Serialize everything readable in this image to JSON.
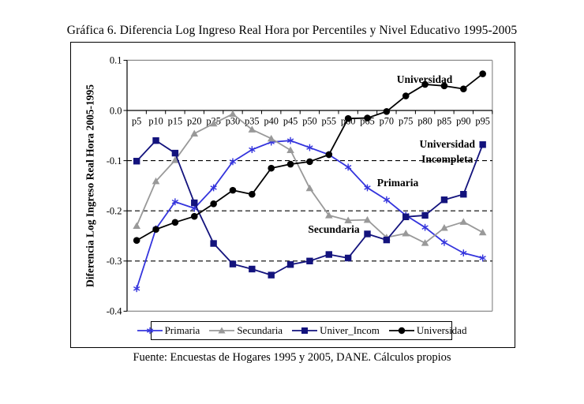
{
  "title": "Gráfica 6. Diferencia Log Ingreso Real Hora por Percentiles y Nivel Educativo 1995-2005",
  "footer": "Fuente: Encuestas de Hogares 1995 y 2005, DANE. Cálculos propios",
  "colors": {
    "primaria_blue": "#3434dd",
    "secundaria_gray": "#999999",
    "univer_incom_navy": "#13137d",
    "universidad_black": "#000000",
    "frame_gray": "#8c8c8c"
  },
  "chart_data": {
    "type": "line",
    "title": "Gráfica 6. Diferencia Log Ingreso Real Hora por Percentiles y Nivel Educativo 1995-2005",
    "xlabel": "",
    "ylabel": "Diferencia Log Ingreso Real Hora 2005-1995",
    "ylim": [
      -0.4,
      0.1
    ],
    "yticks": [
      0.1,
      0.0,
      -0.1,
      -0.2,
      -0.3,
      -0.4
    ],
    "grid": "horizontal dashed at -0.1, -0.2, -0.3; solid zero line",
    "legend_position": "bottom",
    "categories": [
      "p5",
      "p10",
      "p15",
      "p20",
      "p25",
      "p30",
      "p35",
      "p40",
      "p45",
      "p50",
      "p55",
      "p60",
      "p65",
      "p70",
      "p75",
      "p80",
      "p85",
      "p90",
      "p95"
    ],
    "series": [
      {
        "name": "Primaria",
        "marker": "asterisk",
        "color": "#3434dd",
        "values": [
          -0.355,
          -0.236,
          -0.182,
          -0.195,
          -0.154,
          -0.102,
          -0.078,
          -0.063,
          -0.06,
          -0.074,
          -0.088,
          -0.113,
          -0.154,
          -0.178,
          -0.209,
          -0.233,
          -0.263,
          -0.284,
          -0.294
        ]
      },
      {
        "name": "Secundaria",
        "marker": "triangle",
        "color": "#999999",
        "values": [
          -0.23,
          -0.141,
          -0.099,
          -0.046,
          -0.026,
          -0.007,
          -0.038,
          -0.056,
          -0.079,
          -0.155,
          -0.209,
          -0.219,
          -0.218,
          -0.253,
          -0.245,
          -0.264,
          -0.234,
          -0.222,
          -0.243
        ]
      },
      {
        "name": "Univer_Incom",
        "marker": "square",
        "color": "#13137d",
        "values": [
          -0.101,
          -0.06,
          -0.085,
          -0.184,
          -0.265,
          -0.306,
          -0.316,
          -0.328,
          -0.307,
          -0.3,
          -0.287,
          -0.294,
          -0.246,
          -0.258,
          -0.212,
          -0.209,
          -0.178,
          -0.167,
          -0.068
        ]
      },
      {
        "name": "Universidad",
        "marker": "circle",
        "color": "#000000",
        "values": [
          -0.259,
          -0.237,
          -0.223,
          -0.211,
          -0.186,
          -0.159,
          -0.167,
          -0.115,
          -0.107,
          -0.102,
          -0.088,
          -0.016,
          -0.015,
          -0.002,
          0.029,
          0.052,
          0.049,
          0.043,
          0.073
        ]
      }
    ],
    "annotations": [
      {
        "text": "Universidad"
      },
      {
        "lines": [
          "Universidad",
          "Incompleta"
        ]
      },
      {
        "text": "Primaria"
      },
      {
        "text": "Secundaria"
      }
    ]
  }
}
